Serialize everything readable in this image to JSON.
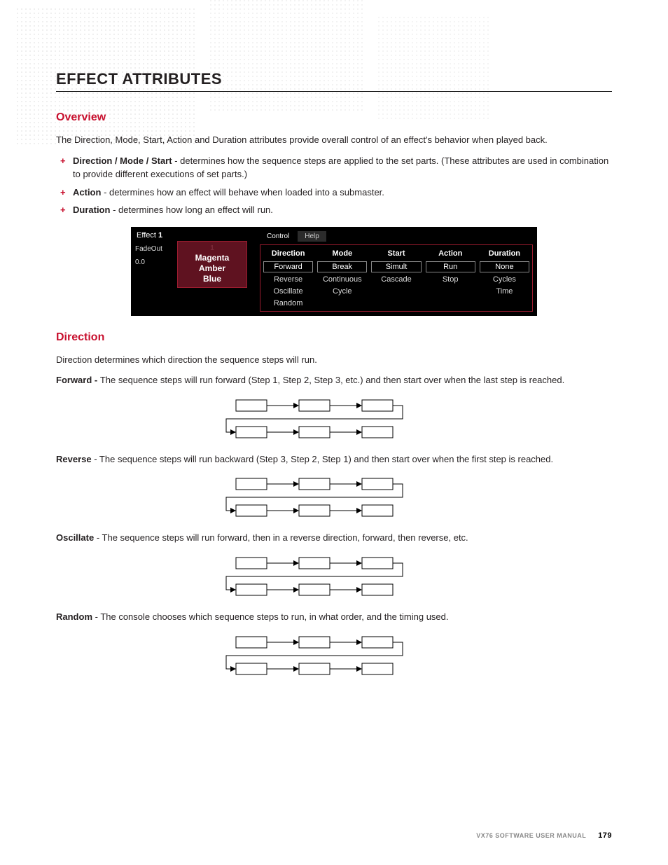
{
  "page": {
    "title": "EFFECT ATTRIBUTES",
    "footer_label": "VX76 SOFTWARE USER MANUAL",
    "page_number": "179"
  },
  "overview": {
    "heading": "Overview",
    "intro": "The Direction, Mode, Start, Action and Duration attributes provide overall control of an effect's behavior when played back.",
    "bullets": [
      {
        "term": "Direction / Mode / Start",
        "desc": " - determines how the sequence steps are applied to the set parts. (These attributes are used in combination to provide different executions of set parts.)"
      },
      {
        "term": "Action",
        "desc": " - determines how an effect will behave when loaded into a submaster."
      },
      {
        "term": "Duration",
        "desc": " - determines how long an effect will run."
      }
    ]
  },
  "panel": {
    "effect_label": "Effect",
    "effect_num_bold": "1",
    "box_num": "1",
    "box_lines": [
      "Magenta",
      "Amber",
      "Blue"
    ],
    "fadeout_label": "FadeOut",
    "fadeout_value": "0.0",
    "tabs": [
      "Control",
      "Help"
    ],
    "columns": [
      {
        "head": "Direction",
        "boxed": [
          "Forward"
        ],
        "plain": [
          "Reverse",
          "Oscillate",
          "Random"
        ]
      },
      {
        "head": "Mode",
        "boxed": [
          "Break"
        ],
        "plain": [
          "Continuous",
          "Cycle"
        ]
      },
      {
        "head": "Start",
        "boxed": [
          "Simult"
        ],
        "plain": [
          "Cascade"
        ]
      },
      {
        "head": "Action",
        "boxed": [
          "Run"
        ],
        "plain": [
          "Stop"
        ]
      },
      {
        "head": "Duration",
        "boxed": [
          "None"
        ],
        "plain": [
          "Cycles",
          "Time"
        ]
      }
    ]
  },
  "direction": {
    "heading": "Direction",
    "intro": "Direction determines which direction the sequence steps will run.",
    "items": [
      {
        "term": "Forward - ",
        "desc": "The sequence steps will run forward (Step 1, Step 2, Step 3, etc.) and then start over when the last step is reached."
      },
      {
        "term": "Reverse",
        "desc": " - The sequence steps will run backward (Step 3, Step 2, Step 1) and then start over when the first step is reached."
      },
      {
        "term": "Oscillate",
        "desc": " - The sequence steps will run forward, then in a reverse direction, forward, then reverse, etc."
      },
      {
        "term": "Random",
        "desc": " - The console chooses which sequence steps to run, in what order, and the timing used."
      }
    ]
  },
  "colors": {
    "accent": "#c8102e",
    "panel_bg": "#000000",
    "panel_border": "#9b1c2f",
    "box_bg": "#5f1220"
  }
}
